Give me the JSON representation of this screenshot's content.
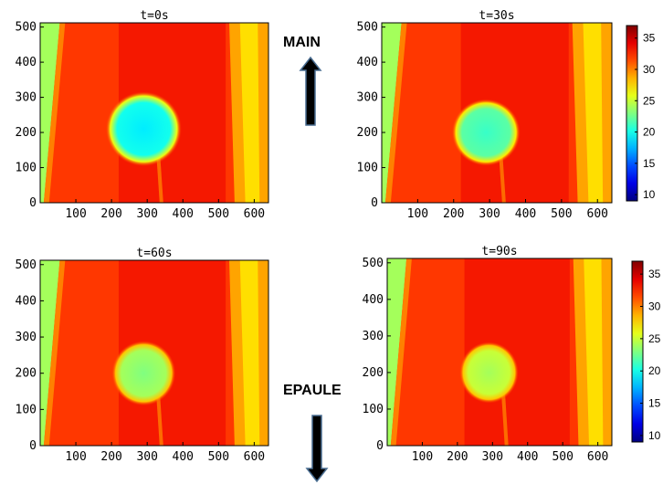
{
  "labels": {
    "top": "MAIN",
    "bottom": "EPAULE"
  },
  "colormap": "jet",
  "colors": {
    "bg": "#ffffff",
    "arrow": "#000000",
    "arrow_edge": "#4a6e92"
  },
  "chart_data": [
    {
      "type": "heatmap",
      "title": "t=0s",
      "xticks": [
        "100",
        "200",
        "300",
        "400",
        "500",
        "600"
      ],
      "yticks": [
        "0",
        "100",
        "200",
        "300",
        "400",
        "500"
      ],
      "xlim": [
        0,
        640
      ],
      "ylim": [
        0,
        512
      ],
      "field": {
        "background_temp": 32,
        "cold_spot_center": [
          290,
          210
        ],
        "cold_spot_radius": 95,
        "cold_spot_min_temp": 19,
        "cold_spot_edge_temp": 26
      }
    },
    {
      "type": "heatmap",
      "title": "t=30s",
      "xticks": [
        "100",
        "200",
        "300",
        "400",
        "500",
        "600"
      ],
      "yticks": [
        "0",
        "100",
        "200",
        "300",
        "400",
        "500"
      ],
      "xlim": [
        0,
        640
      ],
      "ylim": [
        0,
        512
      ],
      "field": {
        "background_temp": 32,
        "cold_spot_center": [
          290,
          200
        ],
        "cold_spot_radius": 85,
        "cold_spot_min_temp": 21,
        "cold_spot_edge_temp": 27
      }
    },
    {
      "type": "heatmap",
      "title": "t=60s",
      "xticks": [
        "100",
        "200",
        "300",
        "400",
        "500",
        "600"
      ],
      "yticks": [
        "0",
        "100",
        "200",
        "300",
        "400",
        "500"
      ],
      "xlim": [
        0,
        640
      ],
      "ylim": [
        0,
        512
      ],
      "field": {
        "background_temp": 32,
        "cold_spot_center": [
          290,
          200
        ],
        "cold_spot_radius": 80,
        "cold_spot_min_temp": 23,
        "cold_spot_edge_temp": 28
      }
    },
    {
      "type": "heatmap",
      "title": "t=90s",
      "xticks": [
        "100",
        "200",
        "300",
        "400",
        "500",
        "600"
      ],
      "yticks": [
        "0",
        "100",
        "200",
        "300",
        "400",
        "500"
      ],
      "xlim": [
        0,
        640
      ],
      "ylim": [
        0,
        512
      ],
      "field": {
        "background_temp": 32,
        "cold_spot_center": [
          290,
          200
        ],
        "cold_spot_radius": 75,
        "cold_spot_min_temp": 24,
        "cold_spot_edge_temp": 28
      }
    }
  ],
  "colorbars": [
    {
      "ticks": [
        "35",
        "30",
        "25",
        "20",
        "15",
        "10"
      ],
      "range": [
        9,
        37
      ]
    },
    {
      "ticks": [
        "35",
        "30",
        "25",
        "20",
        "15",
        "10"
      ],
      "range": [
        9,
        37
      ]
    }
  ]
}
